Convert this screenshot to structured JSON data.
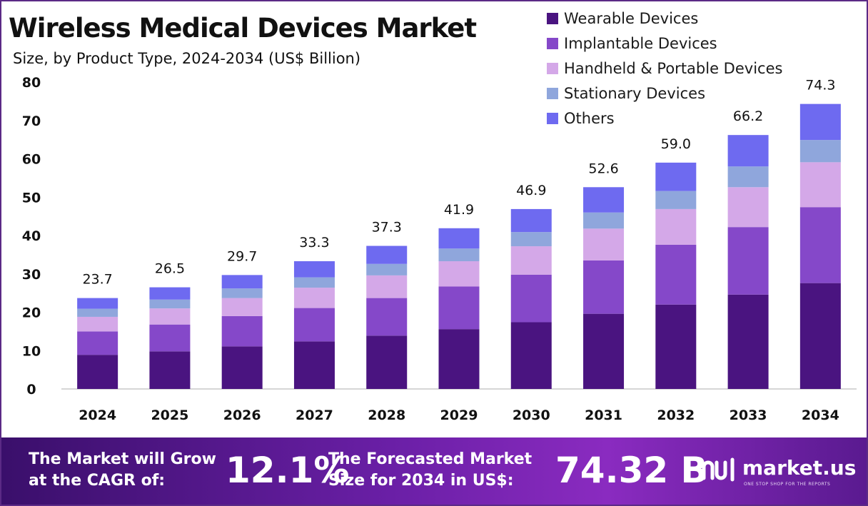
{
  "title": "Wireless Medical Devices Market",
  "subtitle": "Size, by Product Type, 2024-2034 (US$ Billion)",
  "colors": {
    "wearable": "#4a1480",
    "implantable": "#8548c9",
    "handheld": "#d4a8e8",
    "stationary": "#8fa6dc",
    "others": "#6e6af0"
  },
  "chart_data": {
    "type": "bar",
    "stacked": true,
    "categories": [
      "2024",
      "2025",
      "2026",
      "2027",
      "2028",
      "2029",
      "2030",
      "2031",
      "2032",
      "2033",
      "2034"
    ],
    "series": [
      {
        "name": "Wearable Devices",
        "values": [
          8.9,
          9.8,
          11.1,
          12.4,
          13.9,
          15.6,
          17.4,
          19.6,
          22.0,
          24.6,
          27.6
        ]
      },
      {
        "name": "Implantable Devices",
        "values": [
          6.1,
          7.0,
          7.9,
          8.7,
          9.8,
          11.1,
          12.4,
          13.9,
          15.6,
          17.6,
          19.8
        ]
      },
      {
        "name": "Handheld & Portable Devices",
        "values": [
          3.8,
          4.2,
          4.7,
          5.3,
          5.9,
          6.6,
          7.4,
          8.3,
          9.3,
          10.4,
          11.7
        ]
      },
      {
        "name": "Stationary Devices",
        "values": [
          2.1,
          2.3,
          2.5,
          2.7,
          3.0,
          3.3,
          3.7,
          4.2,
          4.7,
          5.4,
          5.8
        ]
      },
      {
        "name": "Others",
        "values": [
          2.8,
          3.2,
          3.5,
          4.2,
          4.7,
          5.3,
          6.0,
          6.6,
          7.4,
          8.2,
          9.4
        ]
      }
    ],
    "totals": [
      "23.7",
      "26.5",
      "29.7",
      "33.3",
      "37.3",
      "41.9",
      "46.9",
      "52.6",
      "59.0",
      "66.2",
      "74.3"
    ],
    "y_ticks": [
      "0",
      "10",
      "20",
      "30",
      "40",
      "50",
      "60",
      "70",
      "80"
    ],
    "ylim": [
      0,
      80
    ],
    "grid": false,
    "legend_position": "top-right"
  },
  "banner": {
    "cagr_label_line1": "The Market will Grow",
    "cagr_label_line2": "at the CAGR of:",
    "cagr_value": "12.1%",
    "forecast_label_line1": "The Forecasted Market",
    "forecast_label_line2": "Size for 2034 in US$:",
    "forecast_value": "74.32 B",
    "brand": "market.us",
    "brand_tagline": "ONE STOP SHOP FOR THE REPORTS"
  }
}
